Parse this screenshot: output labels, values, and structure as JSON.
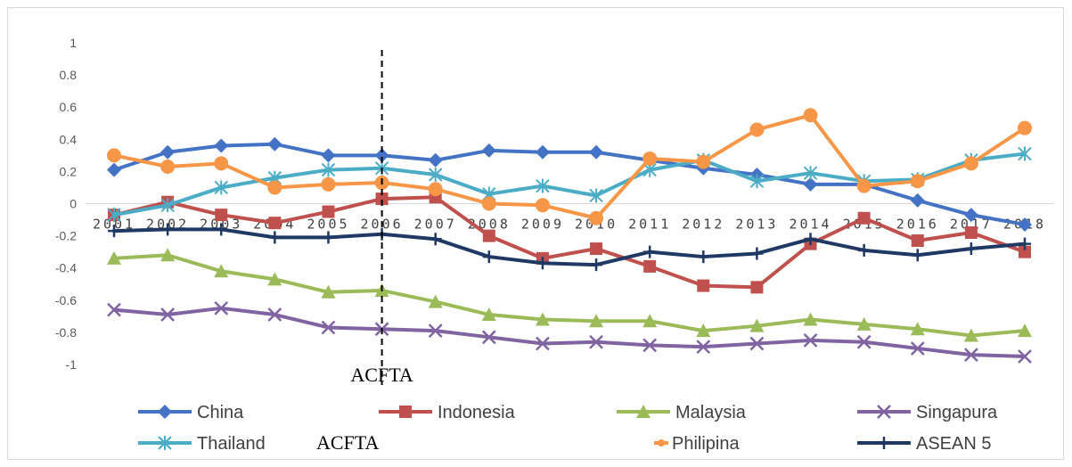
{
  "chart_data": {
    "type": "line",
    "title": "",
    "xlabel": "",
    "ylabel": "",
    "ylim": [
      -1,
      1
    ],
    "y_ticks": [
      "1",
      "0.8",
      "0.6",
      "0.4",
      "0.2",
      "0",
      "-0.2",
      "-0.4",
      "-0.6",
      "-0.8",
      "-1"
    ],
    "x": [
      "2001",
      "2002",
      "2003",
      "2004",
      "2005",
      "2006",
      "2007",
      "2008",
      "2009",
      "2010",
      "2011",
      "2012",
      "2013",
      "2014",
      "2015",
      "2016",
      "2017",
      "2018"
    ],
    "grid": false,
    "legend_position": "bottom",
    "series": [
      {
        "name": "China",
        "color": "#4472c4",
        "marker": "diamond",
        "values": [
          0.21,
          0.32,
          0.36,
          0.37,
          0.3,
          0.3,
          0.27,
          0.33,
          0.32,
          0.32,
          0.27,
          0.22,
          0.18,
          0.12,
          0.12,
          0.02,
          -0.07,
          -0.13
        ]
      },
      {
        "name": "Indonesia",
        "color": "#c0504d",
        "marker": "square",
        "values": [
          -0.07,
          0.01,
          -0.07,
          -0.12,
          -0.05,
          0.03,
          0.04,
          -0.2,
          -0.34,
          -0.28,
          -0.39,
          -0.51,
          -0.52,
          -0.25,
          -0.09,
          -0.23,
          -0.18,
          -0.3
        ]
      },
      {
        "name": "Malaysia",
        "color": "#9bbb59",
        "marker": "triangle",
        "values": [
          -0.34,
          -0.32,
          -0.42,
          -0.47,
          -0.55,
          -0.54,
          -0.61,
          -0.69,
          -0.72,
          -0.73,
          -0.73,
          -0.79,
          -0.76,
          -0.72,
          -0.75,
          -0.78,
          -0.82,
          -0.79
        ]
      },
      {
        "name": "Singapura",
        "color": "#8064a2",
        "marker": "x",
        "values": [
          -0.66,
          -0.69,
          -0.65,
          -0.69,
          -0.77,
          -0.78,
          -0.79,
          -0.83,
          -0.87,
          -0.86,
          -0.88,
          -0.89,
          -0.87,
          -0.85,
          -0.86,
          -0.9,
          -0.94,
          -0.95
        ]
      },
      {
        "name": "Thailand",
        "color": "#4bacc6",
        "marker": "asterisk",
        "values": [
          -0.07,
          -0.01,
          0.1,
          0.16,
          0.21,
          0.22,
          0.18,
          0.06,
          0.11,
          0.05,
          0.21,
          0.27,
          0.14,
          0.19,
          0.14,
          0.15,
          0.27,
          0.31
        ]
      },
      {
        "name": "Philipina",
        "color": "#f79646",
        "marker": "circle",
        "values": [
          0.3,
          0.23,
          0.25,
          0.1,
          0.12,
          0.13,
          0.09,
          0.0,
          -0.01,
          -0.09,
          0.28,
          0.26,
          0.46,
          0.55,
          0.11,
          0.14,
          0.25,
          0.47
        ]
      },
      {
        "name": "ASEAN 5",
        "color": "#1f3864",
        "marker": "plus",
        "values": [
          -0.17,
          -0.16,
          -0.16,
          -0.21,
          -0.21,
          -0.19,
          -0.22,
          -0.33,
          -0.37,
          -0.38,
          -0.3,
          -0.33,
          -0.31,
          -0.22,
          -0.29,
          -0.32,
          -0.28,
          -0.25
        ]
      }
    ],
    "annotations": [
      {
        "label": "ACFTA",
        "at_x": "2006",
        "style": "dashed vertical line"
      },
      {
        "label": "ACFTA",
        "location": "legend"
      }
    ]
  }
}
